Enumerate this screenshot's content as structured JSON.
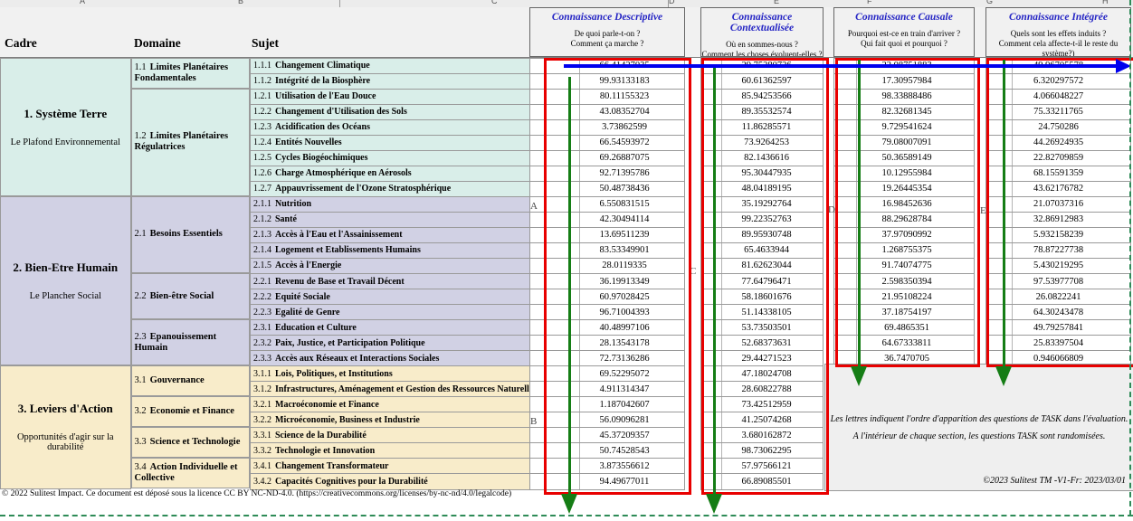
{
  "header": {
    "col_cadre": "Cadre",
    "col_domaine": "Domaine",
    "col_sujet": "Sujet",
    "knowledge_columns": [
      {
        "title": "Connaissance Descriptive",
        "q1": "De quoi parle-t-on ?",
        "q2": "Comment ça marche ?"
      },
      {
        "title": "Connaissance Contextualisée",
        "q1": "Où en sommes-nous ?",
        "q2": "Comment les choses évoluent-elles ?"
      },
      {
        "title": "Connaissance Causale",
        "q1": "Pourquoi est-ce en train d'arriver ?",
        "q2": "Qui fait quoi et pourquoi ?"
      },
      {
        "title": "Connaissance Intégrée",
        "q1": "Quels sont les effets induits ?",
        "q2": "Comment cela affecte-t-il le reste du système?)"
      }
    ]
  },
  "col_letters": [
    "A",
    "B",
    "C",
    "D",
    "E",
    "F",
    "G",
    "H"
  ],
  "sections": [
    {
      "title": "1. Système Terre",
      "subtitle": "Le Plafond Environnemental",
      "rows": [
        0,
        9
      ]
    },
    {
      "title": "2. Bien-Etre Humain",
      "subtitle": "Le Plancher Social",
      "rows": [
        9,
        20
      ]
    },
    {
      "title": "3. Leviers d'Action",
      "subtitle": "Opportunités d'agir sur la durabilité",
      "rows": [
        20,
        28
      ]
    }
  ],
  "domains": [
    {
      "code": "1.1",
      "name": "Limites Planétaires Fondamentales",
      "rows": [
        0,
        2
      ],
      "section": 0
    },
    {
      "code": "1.2",
      "name": "Limites Planétaires Régulatrices",
      "rows": [
        2,
        9
      ],
      "section": 0
    },
    {
      "code": "2.1",
      "name": "Besoins Essentiels",
      "rows": [
        9,
        14
      ],
      "section": 1
    },
    {
      "code": "2.2",
      "name": "Bien-être Social",
      "rows": [
        14,
        17
      ],
      "section": 1
    },
    {
      "code": "2.3",
      "name": "Epanouissement Humain",
      "rows": [
        17,
        20
      ],
      "section": 1
    },
    {
      "code": "3.1",
      "name": "Gouvernance",
      "rows": [
        20,
        22
      ],
      "section": 2
    },
    {
      "code": "3.2",
      "name": "Economie et Finance",
      "rows": [
        22,
        24
      ],
      "section": 2
    },
    {
      "code": "3.3",
      "name": "Science et Technologie",
      "rows": [
        24,
        26
      ],
      "section": 2
    },
    {
      "code": "3.4",
      "name": "Action Individuelle et Collective",
      "rows": [
        26,
        28
      ],
      "section": 2
    }
  ],
  "rows": [
    {
      "code": "1.1.1",
      "label": "Changement Climatique",
      "section": 0,
      "values": [
        "66.41427035",
        "29.75280726",
        "22.08751883",
        "49.96705578"
      ]
    },
    {
      "code": "1.1.2",
      "label": "Intégrité de la Biosphère",
      "section": 0,
      "values": [
        "99.93133183",
        "60.61362597",
        "17.30957984",
        "6.320297572"
      ]
    },
    {
      "code": "1.2.1",
      "label": "Utilisation de l'Eau Douce",
      "section": 0,
      "values": [
        "80.11155323",
        "85.94253566",
        "98.33888486",
        "4.066048227"
      ]
    },
    {
      "code": "1.2.2",
      "label": "Changement d'Utilisation des Sols",
      "section": 0,
      "values": [
        "43.08352704",
        "89.35532574",
        "82.32681345",
        "75.33211765"
      ]
    },
    {
      "code": "1.2.3",
      "label": "Acidification des Océans",
      "section": 0,
      "values": [
        "3.73862599",
        "11.86285571",
        "9.729541624",
        "24.750286"
      ]
    },
    {
      "code": "1.2.4",
      "label": "Entités Nouvelles",
      "section": 0,
      "values": [
        "66.54593972",
        "73.9264253",
        "79.08007091",
        "44.26924935"
      ]
    },
    {
      "code": "1.2.5",
      "label": "Cycles Biogéochimiques",
      "section": 0,
      "values": [
        "69.26887075",
        "82.1436616",
        "50.36589149",
        "22.82709859"
      ]
    },
    {
      "code": "1.2.6",
      "label": "Charge Atmosphérique en Aérosols",
      "section": 0,
      "values": [
        "92.71395786",
        "95.30447935",
        "10.12955984",
        "68.15591359"
      ]
    },
    {
      "code": "1.2.7",
      "label": "Appauvrissement de l'Ozone Stratosphérique",
      "section": 0,
      "values": [
        "50.48738436",
        "48.04189195",
        "19.26445354",
        "43.62176782"
      ]
    },
    {
      "code": "2.1.1",
      "label": "Nutrition",
      "section": 1,
      "values": [
        "6.550831515",
        "35.19292764",
        "16.98452636",
        "21.07037316"
      ]
    },
    {
      "code": "2.1.2",
      "label": "Santé",
      "section": 1,
      "values": [
        "42.30494114",
        "99.22352763",
        "88.29628784",
        "32.86912983"
      ]
    },
    {
      "code": "2.1.3",
      "label": "Accès à l'Eau et l'Assainissement",
      "section": 1,
      "values": [
        "13.69511239",
        "89.95930748",
        "37.97090992",
        "5.932158239"
      ]
    },
    {
      "code": "2.1.4",
      "label": "Logement et Etablissements Humains",
      "section": 1,
      "values": [
        "83.53349901",
        "65.4633944",
        "1.268755375",
        "78.87227738"
      ]
    },
    {
      "code": "2.1.5",
      "label": "Accès à l'Energie",
      "section": 1,
      "values": [
        "28.0119335",
        "81.62623044",
        "91.74074775",
        "5.430219295"
      ]
    },
    {
      "code": "2.2.1",
      "label": "Revenu de Base et Travail Décent",
      "section": 1,
      "values": [
        "36.19913349",
        "77.64796471",
        "2.598350394",
        "97.53977708"
      ]
    },
    {
      "code": "2.2.2",
      "label": "Equité Sociale",
      "section": 1,
      "values": [
        "60.97028425",
        "58.18601676",
        "21.95108224",
        "26.0822241"
      ]
    },
    {
      "code": "2.2.3",
      "label": "Egalité de Genre",
      "section": 1,
      "values": [
        "96.71004393",
        "51.14338105",
        "37.18754197",
        "64.30243478"
      ]
    },
    {
      "code": "2.3.1",
      "label": "Education et Culture",
      "section": 1,
      "values": [
        "40.48997106",
        "53.73503501",
        "69.4865351",
        "49.79257841"
      ]
    },
    {
      "code": "2.3.2",
      "label": "Paix, Justice, et Participation Politique",
      "section": 1,
      "values": [
        "28.13543178",
        "52.68373631",
        "64.67333811",
        "25.83397504"
      ]
    },
    {
      "code": "2.3.3",
      "label": "Accès aux Réseaux et Interactions Sociales",
      "section": 1,
      "values": [
        "72.73136286",
        "29.44271523",
        "36.7470705",
        "0.946066809"
      ]
    },
    {
      "code": "3.1.1",
      "label": "Lois, Politiques, et Institutions",
      "section": 2,
      "values": [
        "69.52295072",
        "47.18024708",
        null,
        null
      ]
    },
    {
      "code": "3.1.2",
      "label": "Infrastructures, Aménagement et Gestion des Ressources Naturelles",
      "section": 2,
      "values": [
        "4.911314347",
        "28.60822788",
        null,
        null
      ]
    },
    {
      "code": "3.2.1",
      "label": "Macroéconomie et Finance",
      "section": 2,
      "values": [
        "1.187042607",
        "73.42512959",
        null,
        null
      ]
    },
    {
      "code": "3.2.2",
      "label": "Microéconomie, Business et Industrie",
      "section": 2,
      "values": [
        "56.09096281",
        "41.25074268",
        null,
        null
      ]
    },
    {
      "code": "3.3.1",
      "label": "Science de la Durabilité",
      "section": 2,
      "values": [
        "45.37209357",
        "3.680162872",
        null,
        null
      ]
    },
    {
      "code": "3.3.2",
      "label": "Technologie et Innovation",
      "section": 2,
      "values": [
        "50.74528543",
        "98.73062295",
        null,
        null
      ]
    },
    {
      "code": "3.4.1",
      "label": "Changement Transformateur",
      "section": 2,
      "values": [
        "3.873556612",
        "57.97566121",
        null,
        null
      ]
    },
    {
      "code": "3.4.2",
      "label": "Capacités Cognitives pour la Durabilité",
      "section": 2,
      "values": [
        "94.49677011",
        "66.89085501",
        null,
        null
      ]
    }
  ],
  "order_letters": [
    "A",
    "B",
    "C",
    "D",
    "E"
  ],
  "note": {
    "line1": "Les lettres indiquent l'ordre d'apparition des questions de TASK dans l'évaluation.",
    "line2": "A l'intérieur de chaque section, les questions TASK sont randomisées.",
    "copyright": "©2023 Sulitest TM -V1-Fr: 2023/03/01"
  },
  "footer": "© 2022 Sulitest Impact. Ce document est déposé sous la licence CC BY NC-ND-4.0. (https://creativecommons.org/licenses/by-nc-nd/4.0/legalcode)",
  "colors": {
    "section1_bg": "#d9eee9",
    "section2_bg": "#d1d1e4",
    "section3_bg": "#f8ecca",
    "red_box": "#e80000",
    "green_arrow": "#157d15",
    "blue_arrow": "#0000ee",
    "title_blue": "#2424c4"
  }
}
